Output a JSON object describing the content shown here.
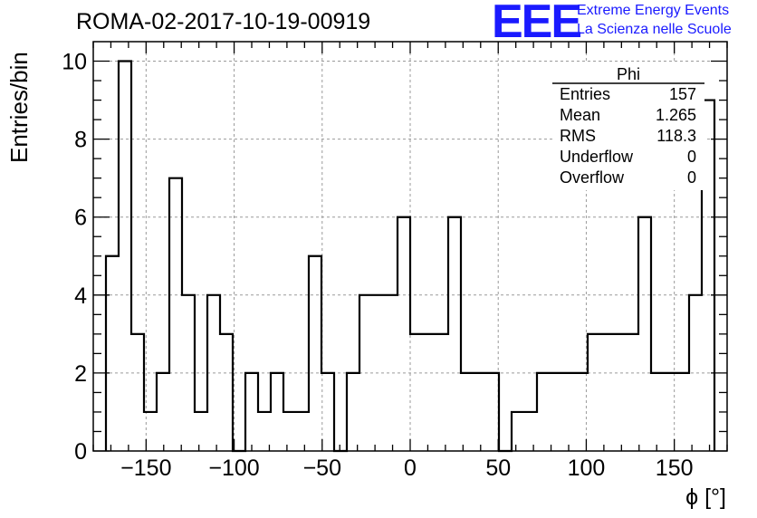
{
  "header": {
    "run_title": "ROMA-02-2017-10-19-00919",
    "logo_text": "EEE",
    "logo_line1": "Extreme Energy Events",
    "logo_line2": "La Scienza nelle Scuole",
    "logo_color": "#1a1aff"
  },
  "stats": {
    "title": "Phi",
    "rows": [
      {
        "label": "Entries",
        "value": "157"
      },
      {
        "label": "Mean",
        "value": "1.265"
      },
      {
        "label": "RMS",
        "value": "118.3"
      },
      {
        "label": "Underflow",
        "value": "0"
      },
      {
        "label": "Overflow",
        "value": "0"
      }
    ]
  },
  "chart_data": {
    "type": "bar",
    "style": "step-histogram",
    "xlabel": "ϕ [°]",
    "ylabel": "Entries/bin",
    "xlim": [
      -180,
      180
    ],
    "ylim": [
      0,
      10.5
    ],
    "xticks": [
      -150,
      -100,
      -50,
      0,
      50,
      100,
      150
    ],
    "xtick_labels": [
      "−150",
      "−100",
      "−50",
      "0",
      "50",
      "100",
      "150"
    ],
    "yticks": [
      0,
      2,
      4,
      6,
      8,
      10
    ],
    "ytick_labels": [
      "0",
      "2",
      "4",
      "6",
      "8",
      "10"
    ],
    "grid": true,
    "bin_width": 7.2,
    "bin_low_edges": [
      -172.8,
      -165.6,
      -158.4,
      -151.2,
      -144.0,
      -136.8,
      -129.6,
      -122.4,
      -115.2,
      -108.0,
      -100.8,
      -93.6,
      -86.4,
      -79.2,
      -72.0,
      -64.8,
      -57.6,
      -50.4,
      -43.2,
      -36.0,
      -28.8,
      -21.6,
      -14.4,
      -7.2,
      0.0,
      7.2,
      14.4,
      21.6,
      28.8,
      36.0,
      43.2,
      50.4,
      57.6,
      64.8,
      72.0,
      79.2,
      86.4,
      93.6,
      100.8,
      108.0,
      115.2,
      122.4,
      129.6,
      136.8,
      144.0,
      151.2,
      158.4,
      165.6
    ],
    "values": [
      5,
      10,
      3,
      1,
      2,
      7,
      4,
      1,
      4,
      3,
      0,
      2,
      1,
      2,
      1,
      1,
      5,
      2,
      0,
      2,
      4,
      4,
      4,
      6,
      3,
      3,
      3,
      6,
      2,
      2,
      2,
      0,
      1,
      1,
      2,
      2,
      2,
      2,
      3,
      3,
      3,
      3,
      6,
      2,
      2,
      2,
      4,
      9
    ],
    "line_color": "#000000",
    "grid_color": "#9a9a9a"
  }
}
